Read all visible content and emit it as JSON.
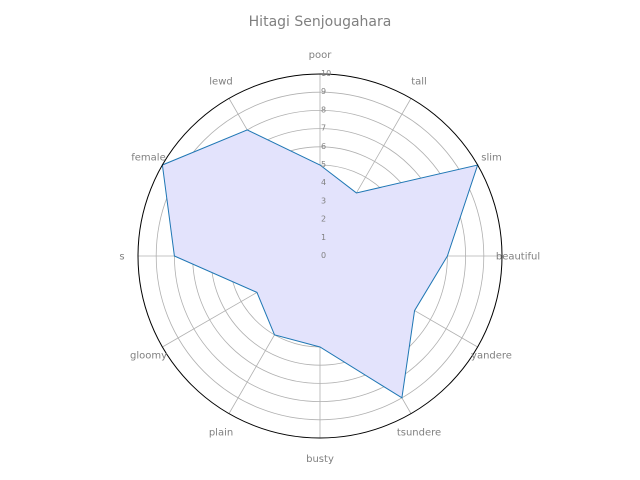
{
  "chart_data": {
    "type": "radar",
    "title": "Hitagi Senjougahara",
    "axes": [
      "poor",
      "tall",
      "slim",
      "beautiful",
      "yandere",
      "tsundere",
      "busty",
      "plain",
      "gloomy",
      "s",
      "female",
      "lewd"
    ],
    "series": [
      {
        "values": [
          5,
          4,
          10,
          7,
          6,
          9,
          5,
          5,
          4,
          8,
          10,
          8
        ]
      }
    ],
    "rlim": [
      0,
      10
    ],
    "rticks": [
      "0",
      "1",
      "2",
      "3",
      "4",
      "5",
      "6",
      "7",
      "8",
      "9",
      "10"
    ],
    "grid": true,
    "colors": {
      "line": "#1f77b4",
      "fill": "#e3e3fc"
    }
  }
}
